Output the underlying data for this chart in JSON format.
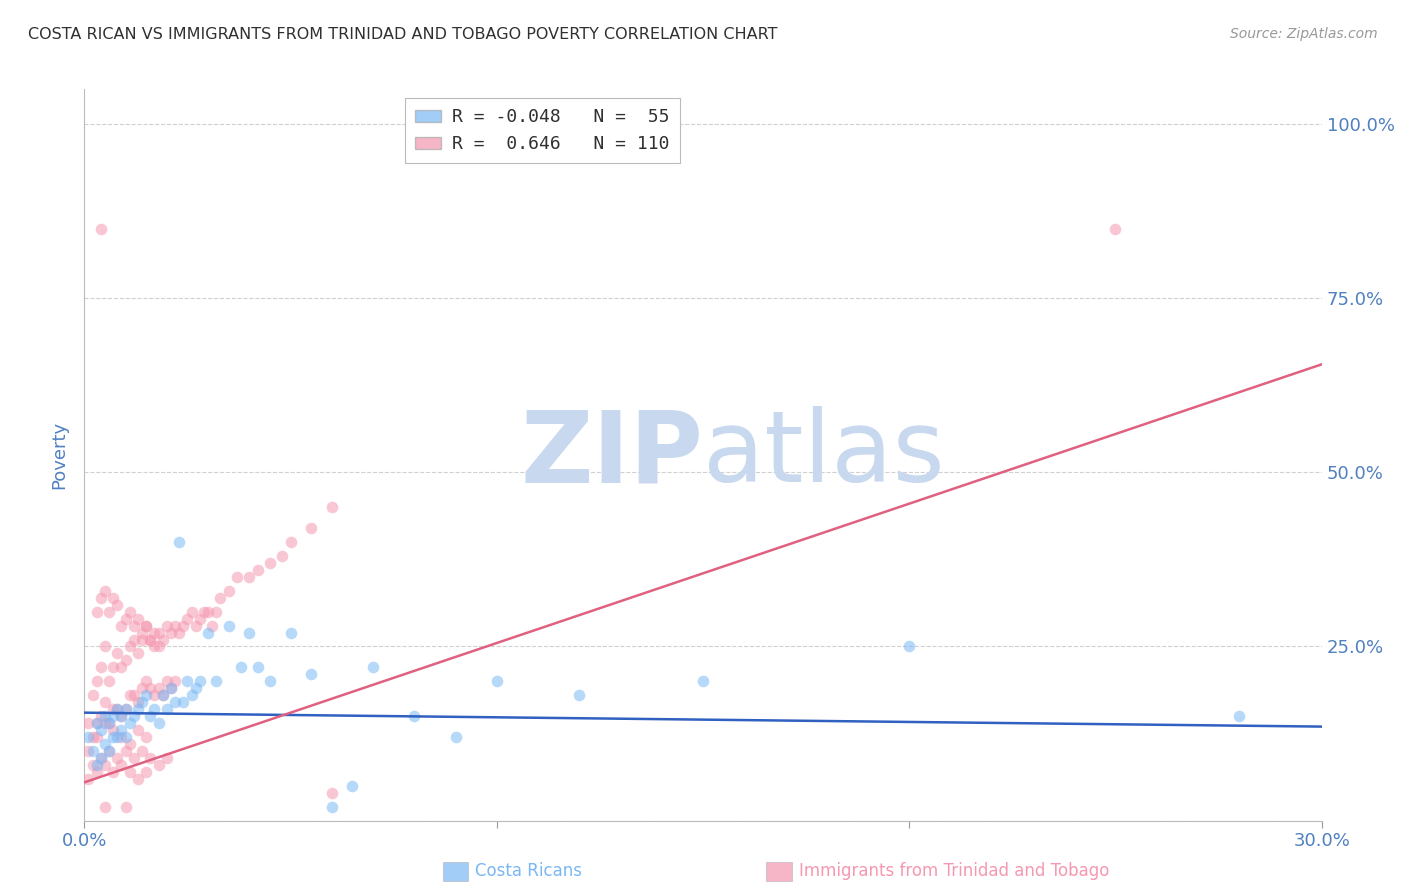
{
  "title": "COSTA RICAN VS IMMIGRANTS FROM TRINIDAD AND TOBAGO POVERTY CORRELATION CHART",
  "source": "Source: ZipAtlas.com",
  "ylabel_label": "Poverty",
  "xlim": [
    0.0,
    0.3
  ],
  "ylim": [
    0.0,
    1.05
  ],
  "background_color": "#ffffff",
  "grid_color": "#d0d0d0",
  "watermark_zip": "ZIP",
  "watermark_atlas": "atlas",
  "watermark_color_zip": "#c8d8ee",
  "watermark_color_atlas": "#c8d8ee",
  "costa_ricans_color": "#7ab8f5",
  "tt_immigrants_color": "#f598b0",
  "costa_ricans_line_color": "#3060c0",
  "tt_immigrants_line_color": "#e06080",
  "title_color": "#303030",
  "axis_label_color": "#5080c0",
  "tick_label_color": "#5080c0",
  "scatter_alpha": 0.55,
  "scatter_size": 70,
  "cr_line_x0": 0.0,
  "cr_line_y0": 0.155,
  "cr_line_x1": 0.3,
  "cr_line_y1": 0.135,
  "tt_line_x0": 0.0,
  "tt_line_y0": 0.055,
  "tt_line_x1": 0.3,
  "tt_line_y1": 0.655,
  "costa_ricans_x": [
    0.001,
    0.002,
    0.003,
    0.003,
    0.004,
    0.004,
    0.005,
    0.005,
    0.006,
    0.006,
    0.007,
    0.007,
    0.008,
    0.008,
    0.009,
    0.009,
    0.01,
    0.01,
    0.011,
    0.012,
    0.013,
    0.014,
    0.015,
    0.016,
    0.017,
    0.018,
    0.019,
    0.02,
    0.021,
    0.022,
    0.023,
    0.024,
    0.025,
    0.026,
    0.027,
    0.028,
    0.03,
    0.032,
    0.035,
    0.038,
    0.04,
    0.042,
    0.045,
    0.05,
    0.055,
    0.06,
    0.065,
    0.07,
    0.08,
    0.09,
    0.1,
    0.12,
    0.15,
    0.2,
    0.28
  ],
  "costa_ricans_y": [
    0.12,
    0.1,
    0.14,
    0.08,
    0.13,
    0.09,
    0.15,
    0.11,
    0.14,
    0.1,
    0.15,
    0.12,
    0.16,
    0.12,
    0.15,
    0.13,
    0.16,
    0.12,
    0.14,
    0.15,
    0.16,
    0.17,
    0.18,
    0.15,
    0.16,
    0.14,
    0.18,
    0.16,
    0.19,
    0.17,
    0.4,
    0.17,
    0.2,
    0.18,
    0.19,
    0.2,
    0.27,
    0.2,
    0.28,
    0.22,
    0.27,
    0.22,
    0.2,
    0.27,
    0.21,
    0.02,
    0.05,
    0.22,
    0.15,
    0.12,
    0.2,
    0.18,
    0.2,
    0.25,
    0.15
  ],
  "tt_immigrants_x": [
    0.001,
    0.001,
    0.002,
    0.002,
    0.003,
    0.003,
    0.004,
    0.004,
    0.005,
    0.005,
    0.006,
    0.006,
    0.007,
    0.007,
    0.008,
    0.008,
    0.009,
    0.009,
    0.01,
    0.01,
    0.011,
    0.011,
    0.012,
    0.012,
    0.013,
    0.013,
    0.014,
    0.014,
    0.015,
    0.015,
    0.016,
    0.016,
    0.017,
    0.017,
    0.018,
    0.018,
    0.019,
    0.019,
    0.02,
    0.02,
    0.021,
    0.021,
    0.022,
    0.022,
    0.023,
    0.024,
    0.025,
    0.026,
    0.027,
    0.028,
    0.029,
    0.03,
    0.031,
    0.032,
    0.033,
    0.035,
    0.037,
    0.04,
    0.042,
    0.045,
    0.048,
    0.05,
    0.055,
    0.06,
    0.003,
    0.004,
    0.005,
    0.006,
    0.007,
    0.008,
    0.009,
    0.01,
    0.011,
    0.012,
    0.013,
    0.014,
    0.015,
    0.016,
    0.017,
    0.018,
    0.003,
    0.005,
    0.007,
    0.009,
    0.011,
    0.013,
    0.015,
    0.002,
    0.004,
    0.006,
    0.008,
    0.01,
    0.012,
    0.014,
    0.016,
    0.018,
    0.02,
    0.001,
    0.003,
    0.005,
    0.007,
    0.009,
    0.011,
    0.013,
    0.015,
    0.004,
    0.25,
    0.06,
    0.005,
    0.01
  ],
  "tt_immigrants_y": [
    0.14,
    0.1,
    0.18,
    0.12,
    0.2,
    0.14,
    0.22,
    0.15,
    0.25,
    0.17,
    0.2,
    0.14,
    0.22,
    0.16,
    0.24,
    0.16,
    0.22,
    0.15,
    0.23,
    0.16,
    0.25,
    0.18,
    0.26,
    0.18,
    0.24,
    0.17,
    0.26,
    0.19,
    0.28,
    0.2,
    0.26,
    0.19,
    0.25,
    0.18,
    0.27,
    0.19,
    0.26,
    0.18,
    0.28,
    0.2,
    0.27,
    0.19,
    0.28,
    0.2,
    0.27,
    0.28,
    0.29,
    0.3,
    0.28,
    0.29,
    0.3,
    0.3,
    0.28,
    0.3,
    0.32,
    0.33,
    0.35,
    0.35,
    0.36,
    0.37,
    0.38,
    0.4,
    0.42,
    0.45,
    0.3,
    0.32,
    0.33,
    0.3,
    0.32,
    0.31,
    0.28,
    0.29,
    0.3,
    0.28,
    0.29,
    0.27,
    0.28,
    0.26,
    0.27,
    0.25,
    0.12,
    0.14,
    0.13,
    0.12,
    0.11,
    0.13,
    0.12,
    0.08,
    0.09,
    0.1,
    0.09,
    0.1,
    0.09,
    0.1,
    0.09,
    0.08,
    0.09,
    0.06,
    0.07,
    0.08,
    0.07,
    0.08,
    0.07,
    0.06,
    0.07,
    0.85,
    0.85,
    0.04,
    0.02,
    0.02
  ]
}
